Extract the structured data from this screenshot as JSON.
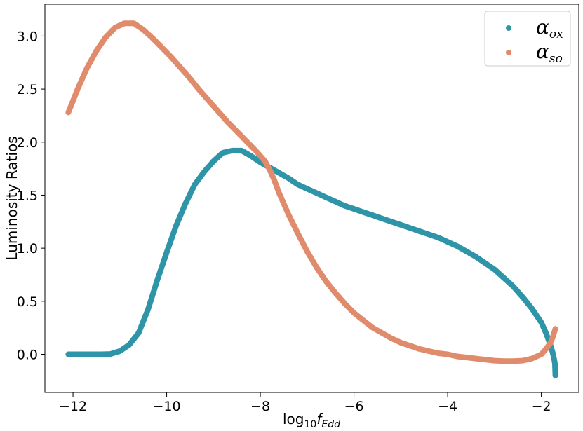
{
  "chart_data": {
    "type": "scatter",
    "xlabel": "log10fEdd",
    "xlabel_parts": {
      "base": "log",
      "sub": "10",
      "var": "f",
      "var_sub": "Edd"
    },
    "ylabel": "Luminosity Ratios",
    "xlim": [
      -12.6,
      -1.2
    ],
    "ylim": [
      -0.36,
      3.3
    ],
    "xticks": [
      -12,
      -10,
      -8,
      -6,
      -4,
      -2
    ],
    "xtick_labels": [
      "−12",
      "−10",
      "−8",
      "−6",
      "−4",
      "−2"
    ],
    "yticks": [
      0.0,
      0.5,
      1.0,
      1.5,
      2.0,
      2.5,
      3.0
    ],
    "ytick_labels": [
      "0.0",
      "0.5",
      "1.0",
      "1.5",
      "2.0",
      "2.5",
      "3.0"
    ],
    "grid": false,
    "legend_position": "top-right",
    "series": [
      {
        "name": "αox",
        "name_parts": {
          "symbol": "α",
          "sub": "ox"
        },
        "color": "#2e95a8",
        "x": [
          -12.1,
          -11.7,
          -11.4,
          -11.2,
          -11.0,
          -10.8,
          -10.6,
          -10.4,
          -10.2,
          -10.0,
          -9.8,
          -9.6,
          -9.4,
          -9.2,
          -9.0,
          -8.8,
          -8.6,
          -8.4,
          -8.2,
          -8.0,
          -7.8,
          -7.6,
          -7.4,
          -7.2,
          -7.0,
          -6.8,
          -6.6,
          -6.4,
          -6.2,
          -6.0,
          -5.8,
          -5.6,
          -5.4,
          -5.2,
          -5.0,
          -4.8,
          -4.6,
          -4.4,
          -4.2,
          -4.0,
          -3.8,
          -3.6,
          -3.4,
          -3.2,
          -3.0,
          -2.8,
          -2.6,
          -2.4,
          -2.2,
          -2.0,
          -1.9,
          -1.85,
          -1.8,
          -1.76,
          -1.74,
          -1.72,
          -1.71,
          -1.7
        ],
        "y": [
          0.0,
          0.0,
          0.0,
          0.003,
          0.03,
          0.09,
          0.2,
          0.42,
          0.7,
          0.96,
          1.21,
          1.42,
          1.6,
          1.72,
          1.82,
          1.9,
          1.92,
          1.92,
          1.87,
          1.81,
          1.76,
          1.71,
          1.66,
          1.6,
          1.56,
          1.52,
          1.48,
          1.44,
          1.4,
          1.37,
          1.34,
          1.31,
          1.28,
          1.25,
          1.22,
          1.19,
          1.16,
          1.13,
          1.1,
          1.06,
          1.02,
          0.97,
          0.92,
          0.86,
          0.8,
          0.72,
          0.64,
          0.54,
          0.43,
          0.3,
          0.2,
          0.14,
          0.08,
          0.02,
          -0.02,
          -0.06,
          -0.09,
          -0.2
        ]
      },
      {
        "name": "αso",
        "name_parts": {
          "symbol": "α",
          "sub": "so"
        },
        "color": "#e08c6c",
        "x": [
          -12.1,
          -11.9,
          -11.7,
          -11.5,
          -11.3,
          -11.1,
          -10.9,
          -10.7,
          -10.5,
          -10.3,
          -10.1,
          -9.9,
          -9.7,
          -9.5,
          -9.3,
          -9.1,
          -8.9,
          -8.7,
          -8.5,
          -8.3,
          -8.1,
          -7.9,
          -7.8,
          -7.7,
          -7.6,
          -7.4,
          -7.2,
          -7.0,
          -6.8,
          -6.6,
          -6.4,
          -6.2,
          -6.0,
          -5.8,
          -5.6,
          -5.4,
          -5.2,
          -5.0,
          -4.8,
          -4.6,
          -4.4,
          -4.2,
          -4.0,
          -3.8,
          -3.6,
          -3.4,
          -3.2,
          -3.0,
          -2.8,
          -2.6,
          -2.4,
          -2.2,
          -2.0,
          -1.9,
          -1.8,
          -1.75,
          -1.7
        ],
        "y": [
          2.28,
          2.5,
          2.7,
          2.86,
          2.99,
          3.08,
          3.12,
          3.12,
          3.06,
          2.98,
          2.89,
          2.8,
          2.7,
          2.6,
          2.49,
          2.39,
          2.29,
          2.19,
          2.1,
          2.01,
          1.92,
          1.82,
          1.74,
          1.64,
          1.52,
          1.32,
          1.14,
          0.97,
          0.82,
          0.69,
          0.58,
          0.48,
          0.39,
          0.32,
          0.25,
          0.2,
          0.15,
          0.11,
          0.08,
          0.05,
          0.03,
          0.01,
          0.0,
          -0.02,
          -0.03,
          -0.04,
          -0.05,
          -0.06,
          -0.065,
          -0.065,
          -0.06,
          -0.04,
          0.0,
          0.05,
          0.11,
          0.17,
          0.24
        ]
      }
    ]
  }
}
